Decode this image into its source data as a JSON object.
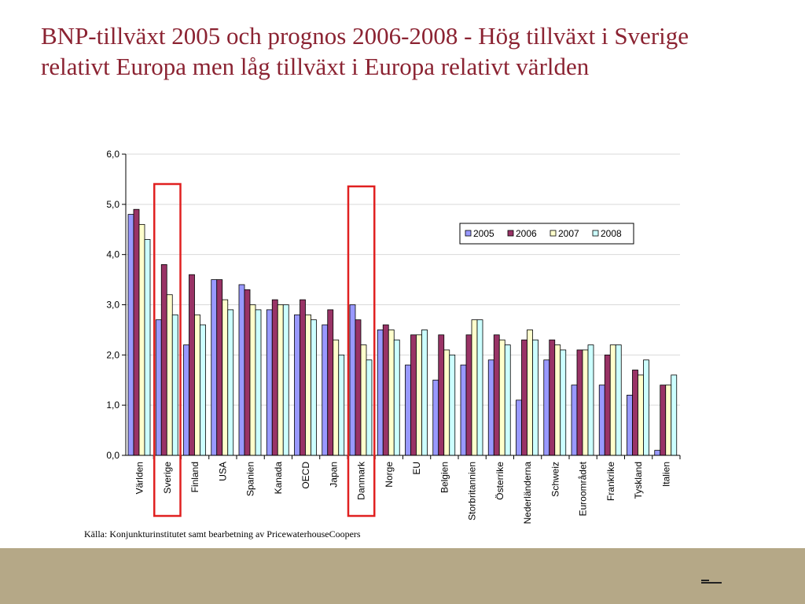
{
  "slide": {
    "title": "BNP-tillväxt 2005 och prognos 2006-2008 - Hög tillväxt i Sverige relativt Europa men låg tillväxt i Europa relativt världen",
    "source": "Källa: Konjunkturinstitutet samt bearbetning av PricewaterhouseCoopers"
  },
  "chart_data": {
    "type": "bar",
    "categories": [
      "Världen",
      "Sverige",
      "Finland",
      "USA",
      "Spanien",
      "Kanada",
      "OECD",
      "Japan",
      "Danmark",
      "Norge",
      "EU",
      "Belgien",
      "Storbritannien",
      "Österrike",
      "Nederländerna",
      "Schweiz",
      "Euroområdet",
      "Frankrike",
      "Tyskland",
      "Italien"
    ],
    "series": [
      {
        "name": "2005",
        "color": "#9999ff",
        "values": [
          4.8,
          2.7,
          2.2,
          3.5,
          3.4,
          2.9,
          2.8,
          2.6,
          3.0,
          2.5,
          1.8,
          1.5,
          1.8,
          1.9,
          1.1,
          1.9,
          1.4,
          1.4,
          1.2,
          0.1
        ]
      },
      {
        "name": "2006",
        "color": "#993366",
        "values": [
          4.9,
          3.8,
          3.6,
          3.5,
          3.3,
          3.1,
          3.1,
          2.9,
          2.7,
          2.6,
          2.4,
          2.4,
          2.4,
          2.4,
          2.3,
          2.3,
          2.1,
          2.0,
          1.7,
          1.4
        ]
      },
      {
        "name": "2007",
        "color": "#ffffcc",
        "values": [
          4.6,
          3.2,
          2.8,
          3.1,
          3.0,
          3.0,
          2.8,
          2.3,
          2.2,
          2.5,
          2.4,
          2.1,
          2.7,
          2.3,
          2.5,
          2.2,
          2.1,
          2.2,
          1.6,
          1.4
        ]
      },
      {
        "name": "2008",
        "color": "#ccffff",
        "values": [
          4.3,
          2.8,
          2.6,
          2.9,
          2.9,
          3.0,
          2.7,
          2.0,
          1.9,
          2.3,
          2.5,
          2.0,
          2.7,
          2.2,
          2.3,
          2.1,
          2.2,
          2.2,
          1.9,
          1.6
        ]
      }
    ],
    "ylim": [
      0,
      6
    ],
    "yticks": [
      "0,0",
      "1,0",
      "2,0",
      "3,0",
      "4,0",
      "5,0",
      "6,0"
    ],
    "grid": true,
    "legend": "top-right",
    "highlighted_categories": [
      "Sverige",
      "Danmark"
    ],
    "highlight_color": "#e02020"
  }
}
